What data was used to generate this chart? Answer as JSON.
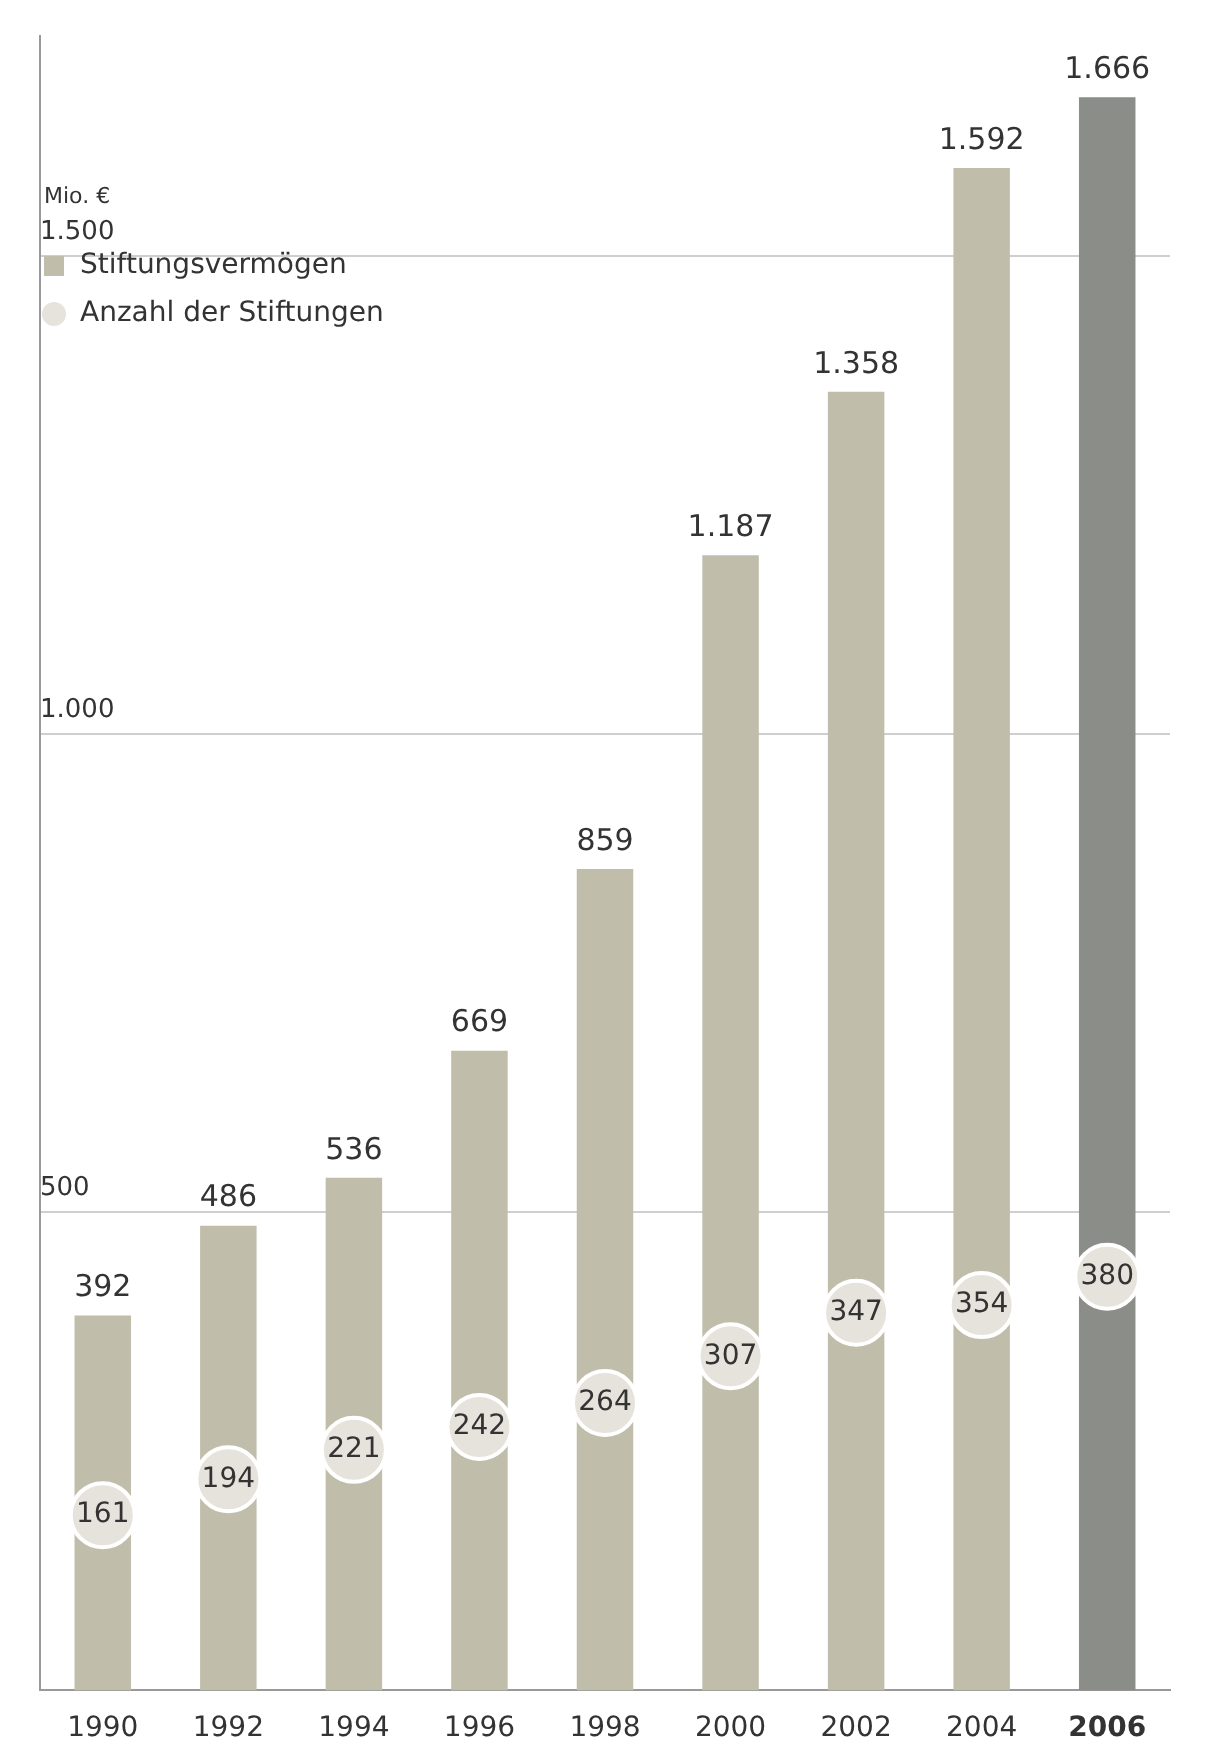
{
  "chart_data": {
    "type": "bar",
    "ylabel": "Mio. €",
    "categories": [
      "1990",
      "1992",
      "1994",
      "1996",
      "1998",
      "2000",
      "2002",
      "2004",
      "2006"
    ],
    "series": [
      {
        "name": "Stiftungsvermögen",
        "colors": [
          "#c0beab",
          "#c0beab",
          "#c0beab",
          "#c0beab",
          "#c0beab",
          "#c0beab",
          "#c0beab",
          "#c0beab",
          "#8b8d89"
        ],
        "color": "#c0beab",
        "values": [
          392,
          486,
          536,
          669,
          859,
          1187,
          1358,
          1592,
          1666
        ],
        "value_labels": [
          "392",
          "486",
          "536",
          "669",
          "859",
          "1.187",
          "1.358",
          "1.592",
          "1.666"
        ]
      },
      {
        "name": "Anzahl der Stiftungen",
        "type": "scatter",
        "axis": "y2",
        "color": "#e6e3dc",
        "values": [
          161,
          194,
          221,
          242,
          264,
          307,
          347,
          354,
          380
        ]
      }
    ],
    "ylim": [
      0,
      1730
    ],
    "yticks": [
      {
        "value": 500,
        "label": "500"
      },
      {
        "value": 1000,
        "label": "1.000"
      },
      {
        "value": 1500,
        "label": "1.500"
      }
    ],
    "data_labels": true,
    "grid": "y",
    "legend": "top left"
  }
}
